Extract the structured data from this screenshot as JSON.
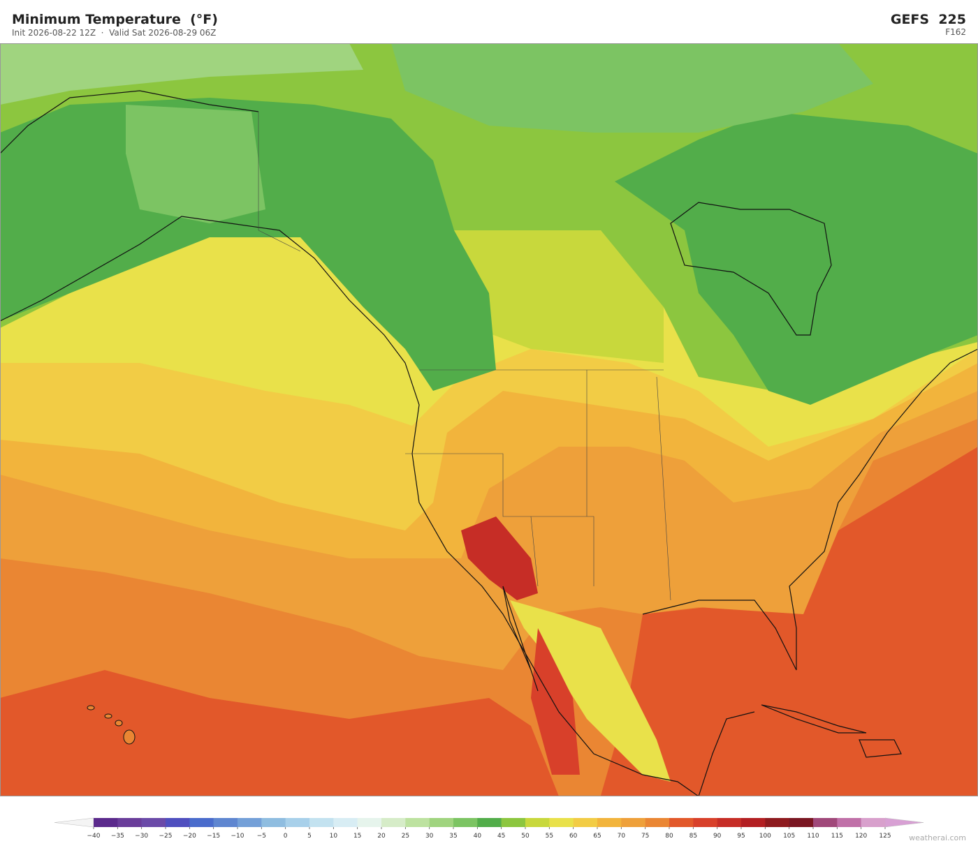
{
  "header": {
    "title": "Minimum Temperature  (°F)",
    "subtitle": "Init 2026-08-22 12Z  ·  Valid Sat 2026-08-29 06Z",
    "model": "GEFS  225",
    "forecast_hour": "F162"
  },
  "colorbar": {
    "ticks": [
      {
        "value": -40,
        "label": "−40"
      },
      {
        "value": -35,
        "label": "−35"
      },
      {
        "value": -30,
        "label": "−30"
      },
      {
        "value": -25,
        "label": "−25"
      },
      {
        "value": -20,
        "label": "−20"
      },
      {
        "value": -15,
        "label": "−15"
      },
      {
        "value": -10,
        "label": "−10"
      },
      {
        "value": -5,
        "label": "−5"
      },
      0,
      5,
      10,
      15,
      20,
      25,
      30,
      35,
      40,
      45,
      50,
      55,
      60,
      65,
      70,
      75,
      80,
      85,
      90,
      95,
      100,
      105,
      110,
      115,
      120,
      125
    ],
    "colors": [
      "#5b2a8c",
      "#6a3d9a",
      "#6b4aa8",
      "#4f4fbf",
      "#4a6ccc",
      "#5f86d0",
      "#74a0d8",
      "#8fbde0",
      "#a8d0ea",
      "#c3e2f0",
      "#d8edf4",
      "#e6f4ec",
      "#d6ecc8",
      "#bde2a0",
      "#a0d47f",
      "#7cc463",
      "#52ad4a",
      "#8cc63f",
      "#c8d83c",
      "#e9e14a",
      "#f2cc45",
      "#f2b43c",
      "#eea03a",
      "#ea8633",
      "#e2582a",
      "#d8402a",
      "#c62d26",
      "#b31f22",
      "#8e1a1e",
      "#7a1622",
      "#a0487a",
      "#c070a8",
      "#d8a0cc"
    ],
    "under_color": "#f4f4f4",
    "over_color": "#d8a0d4"
  },
  "watermark": "weatherai.com"
}
